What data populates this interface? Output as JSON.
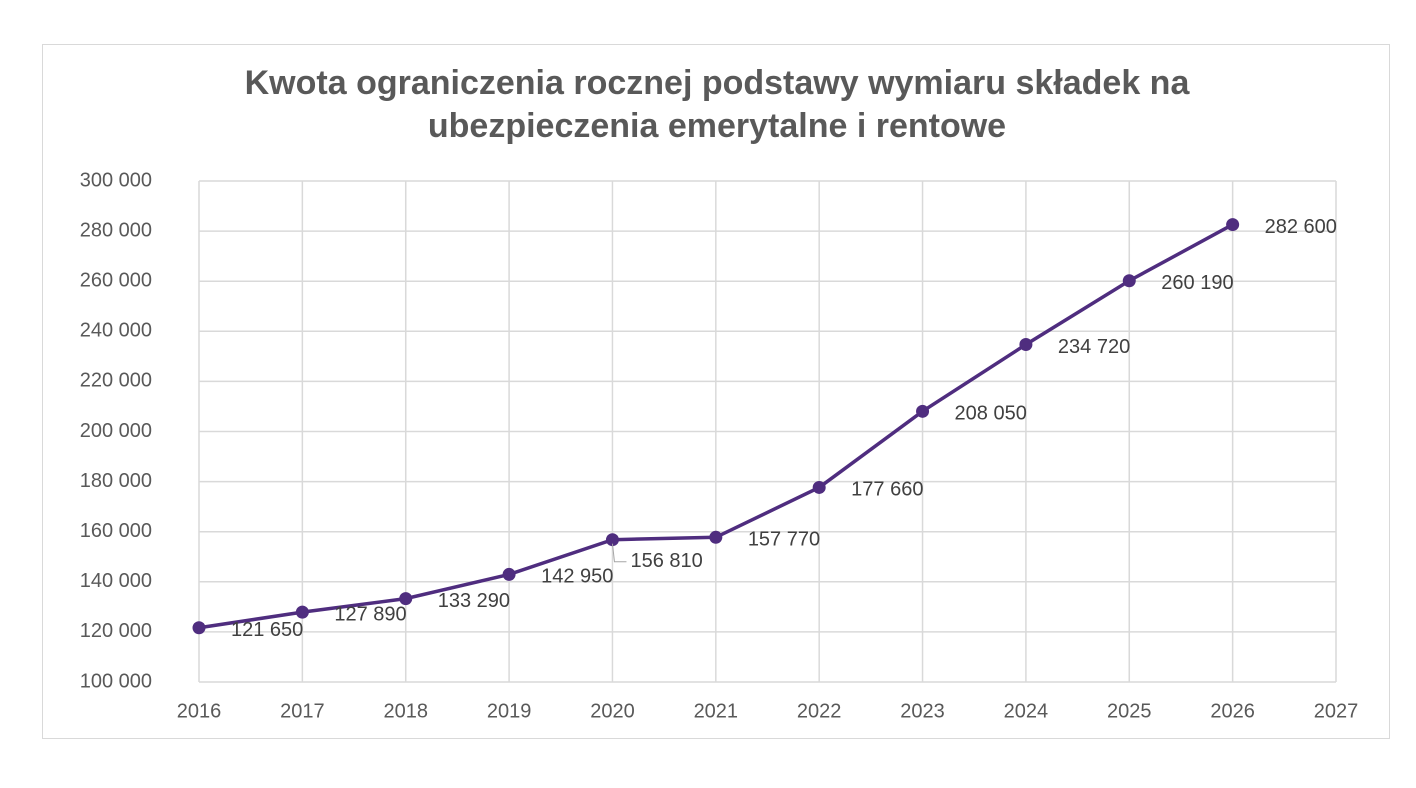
{
  "chart_data": {
    "type": "line",
    "title": "Kwota ograniczenia rocznej podstawy wymiaru składek na ubezpieczenia emerytalne i rentowe",
    "x": [
      2016,
      2017,
      2018,
      2019,
      2020,
      2021,
      2022,
      2023,
      2024,
      2025,
      2026
    ],
    "values": [
      121650,
      127890,
      133290,
      142950,
      156810,
      157770,
      177660,
      208050,
      234720,
      260190,
      282600
    ],
    "value_labels": [
      "121 650",
      "127 890",
      "133 290",
      "142 950",
      "156 810",
      "157 770",
      "177 660",
      "208 050",
      "234 720",
      "260 190",
      "282 600"
    ],
    "color": "#4f2d7f",
    "xlim": [
      2016,
      2027
    ],
    "xticks": [
      2016,
      2017,
      2018,
      2019,
      2020,
      2021,
      2022,
      2023,
      2024,
      2025,
      2026,
      2027
    ],
    "ylim": [
      100000,
      300000
    ],
    "yticks": [
      {
        "value": 100000,
        "label": "100 000"
      },
      {
        "value": 120000,
        "label": "120 000"
      },
      {
        "value": 140000,
        "label": "140 000"
      },
      {
        "value": 160000,
        "label": "160 000"
      },
      {
        "value": 180000,
        "label": "180 000"
      },
      {
        "value": 200000,
        "label": "200 000"
      },
      {
        "value": 220000,
        "label": "220 000"
      },
      {
        "value": 240000,
        "label": "240 000"
      },
      {
        "value": 260000,
        "label": "260 000"
      },
      {
        "value": 280000,
        "label": "280 000"
      },
      {
        "value": 300000,
        "label": "300 000"
      }
    ],
    "grid": true
  }
}
